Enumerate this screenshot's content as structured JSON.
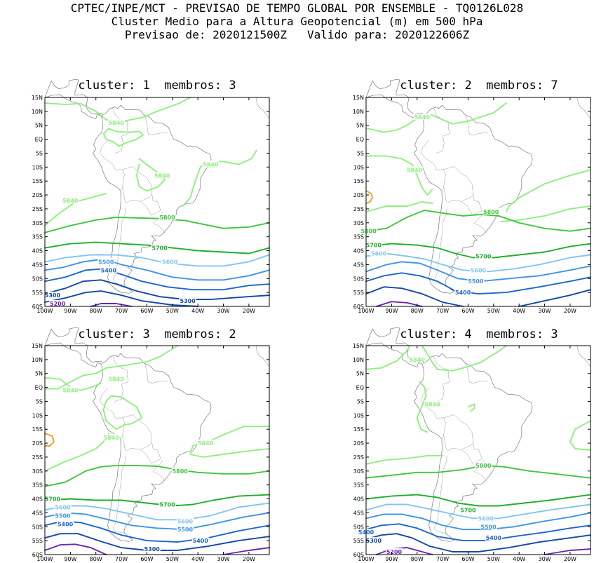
{
  "header": {
    "line1": "CPTEC/INPE/MCT - PREVISAO DE TEMPO GLOBAL POR ENSEMBLE - TQ0126L028",
    "line2": "Cluster Medio para a Altura Geopotencial (m) em 500 hPa",
    "line3": "Previsao de: 2020121500Z   Valido para: 2020122606Z"
  },
  "axes": {
    "lat_labels": [
      "15N",
      "10N",
      "5N",
      "EQ",
      "5S",
      "10S",
      "15S",
      "20S",
      "25S",
      "30S",
      "35S",
      "40S",
      "45S",
      "50S",
      "55S",
      "60S"
    ],
    "lon_labels": [
      "100W",
      "90W",
      "80W",
      "70W",
      "60W",
      "50W",
      "40W",
      "30W",
      "20W"
    ]
  },
  "contour_colors": {
    "5840": "#8ef07e",
    "5800": "#3fc63f",
    "5700": "#1fae2c",
    "5600": "#82c5f2",
    "5500": "#3f95e6",
    "5400": "#1d66cf",
    "5300": "#1348a8",
    "5200": "#6a26b8",
    "5880": "#f0a020"
  },
  "panels": [
    {
      "title": "cluster: 1  membros: 3",
      "labels": [
        {
          "text": "5840",
          "lon": -72,
          "lat": 6
        },
        {
          "text": "5840",
          "lon": -35,
          "lat": -9
        },
        {
          "text": "5840",
          "lon": -54,
          "lat": -13
        },
        {
          "text": "5840",
          "lon": -90,
          "lat": -22
        },
        {
          "text": "5800",
          "lon": -52,
          "lat": -28
        },
        {
          "text": "5700",
          "lon": -55,
          "lat": -39
        },
        {
          "text": "5600",
          "lon": -51,
          "lat": -44
        },
        {
          "text": "5500",
          "lon": -76,
          "lat": -44
        },
        {
          "text": "5400",
          "lon": -75,
          "lat": -47
        },
        {
          "text": "5300",
          "lon": -97,
          "lat": -56
        },
        {
          "text": "5300",
          "lon": -44,
          "lat": -58
        },
        {
          "text": "5200",
          "lon": -95,
          "lat": -59
        }
      ]
    },
    {
      "title": "cluster: 2  membros: 7",
      "labels": [
        {
          "text": "5840",
          "lon": -78,
          "lat": 8
        },
        {
          "text": "5840",
          "lon": -81,
          "lat": -11
        },
        {
          "text": "5800",
          "lon": -51,
          "lat": -26
        },
        {
          "text": "5800",
          "lon": -99,
          "lat": -33
        },
        {
          "text": "5700",
          "lon": -97,
          "lat": -38
        },
        {
          "text": "5700",
          "lon": -54,
          "lat": -42
        },
        {
          "text": "5600",
          "lon": -95,
          "lat": -41
        },
        {
          "text": "5600",
          "lon": -56,
          "lat": -47
        },
        {
          "text": "5500",
          "lon": -57,
          "lat": -51
        },
        {
          "text": "5400",
          "lon": -62,
          "lat": -55
        }
      ]
    },
    {
      "title": "cluster: 3  membros: 2",
      "labels": [
        {
          "text": "5840",
          "lon": -72,
          "lat": 3
        },
        {
          "text": "5840",
          "lon": -90,
          "lat": -1
        },
        {
          "text": "5840",
          "lon": -74,
          "lat": -18
        },
        {
          "text": "5840",
          "lon": -37,
          "lat": -20
        },
        {
          "text": "5800",
          "lon": -47,
          "lat": -30
        },
        {
          "text": "5700",
          "lon": -97,
          "lat": -40
        },
        {
          "text": "5700",
          "lon": -52,
          "lat": -42
        },
        {
          "text": "5600",
          "lon": -93,
          "lat": -43
        },
        {
          "text": "5600",
          "lon": -45,
          "lat": -48
        },
        {
          "text": "5500",
          "lon": -93,
          "lat": -46
        },
        {
          "text": "5500",
          "lon": -45,
          "lat": -51
        },
        {
          "text": "5400",
          "lon": -92,
          "lat": -49
        },
        {
          "text": "5400",
          "lon": -39,
          "lat": -55
        },
        {
          "text": "5300",
          "lon": -58,
          "lat": -58
        }
      ]
    },
    {
      "title": "cluster: 4  membros: 3",
      "labels": [
        {
          "text": "5840",
          "lon": -80,
          "lat": 10
        },
        {
          "text": "5840",
          "lon": -74,
          "lat": -6
        },
        {
          "text": "5800",
          "lon": -54,
          "lat": -28
        },
        {
          "text": "5700",
          "lon": -60,
          "lat": -44
        },
        {
          "text": "5600",
          "lon": -53,
          "lat": -47
        },
        {
          "text": "5500",
          "lon": -52,
          "lat": -50
        },
        {
          "text": "5400",
          "lon": -50,
          "lat": -54
        },
        {
          "text": "5300",
          "lon": -97,
          "lat": -55
        },
        {
          "text": "5400",
          "lon": -100,
          "lat": -52
        },
        {
          "text": "5200",
          "lon": -89,
          "lat": -59
        }
      ]
    }
  ]
}
